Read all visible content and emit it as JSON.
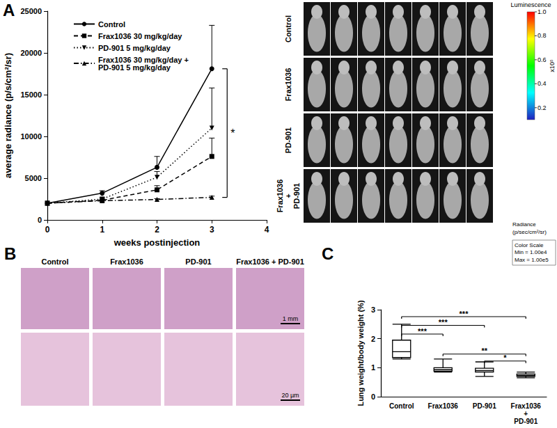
{
  "chart_data": [
    {
      "type": "line",
      "title": "A",
      "xlabel": "weeks postinjection",
      "ylabel": "average radiance (p/s/cm²/sr)",
      "x": [
        0,
        1,
        2,
        3
      ],
      "xlim": [
        0,
        4
      ],
      "xticks": [
        0,
        1,
        2,
        3,
        4
      ],
      "ylim": [
        0,
        25000
      ],
      "yticks": [
        0,
        5000,
        10000,
        15000,
        20000,
        25000
      ],
      "grid": false,
      "legend": "upper left",
      "series": [
        {
          "name": "Control",
          "color": "#000000",
          "marker": "circle",
          "line_style": "solid",
          "values": [
            2000,
            3200,
            6300,
            18100
          ],
          "errors": [
            0,
            300,
            1300,
            5200
          ]
        },
        {
          "name": "Frax1036 30 mg/kg/day",
          "color": "#000000",
          "marker": "square",
          "line_style": "dashed",
          "values": [
            2000,
            2350,
            3600,
            7600
          ],
          "errors": [
            0,
            150,
            500,
            2200
          ]
        },
        {
          "name": "PD-901 5 mg/kg/day",
          "color": "#000000",
          "marker": "triangle-down",
          "line_style": "dotted",
          "values": [
            2000,
            2500,
            5100,
            11000
          ],
          "errors": [
            0,
            200,
            700,
            4800
          ]
        },
        {
          "name": "Frax1036 30 mg/kg/day + PD-901 5 mg/kg/day",
          "color": "#000000",
          "marker": "triangle",
          "line_style": "dashdot",
          "values": [
            2000,
            2300,
            2450,
            2700
          ],
          "errors": [
            0,
            100,
            100,
            150
          ]
        }
      ],
      "annotations": [
        {
          "text": "*",
          "from": "Control",
          "to": "Frax1036 30 mg/kg/day + PD-901 5 mg/kg/day"
        }
      ]
    },
    {
      "type": "box",
      "title": "C",
      "ylabel": "Lung weight/body weight (%)",
      "categories": [
        "Control",
        "Frax1036",
        "PD-901",
        "Frax1036 + PD-901"
      ],
      "values": [
        [
          1.3,
          1.35,
          1.55,
          1.95,
          2.5
        ],
        [
          0.85,
          0.88,
          0.93,
          1.0,
          1.3
        ],
        [
          0.7,
          0.85,
          0.9,
          0.98,
          1.2
        ],
        [
          0.65,
          0.7,
          0.73,
          0.78,
          0.85
        ]
      ],
      "ylim": [
        0,
        3
      ],
      "yticks": [
        0,
        1,
        2,
        3
      ],
      "grid": false,
      "color": "#ffffff",
      "comparisons": [
        {
          "from": "Control",
          "to": "Frax1036 + PD-901",
          "label": "***"
        },
        {
          "from": "Control",
          "to": "PD-901",
          "label": "***"
        },
        {
          "from": "Control",
          "to": "Frax1036",
          "label": "***"
        },
        {
          "from": "Frax1036",
          "to": "Frax1036 + PD-901",
          "label": "**"
        },
        {
          "from": "PD-901",
          "to": "Frax1036 + PD-901",
          "label": "*"
        }
      ]
    }
  ],
  "imaging": {
    "rows": [
      "Control",
      "Frax1036",
      "PD-901",
      "Frax1036 + PD-901"
    ],
    "colorbar": {
      "title": "Luminescence",
      "range": [
        0.1,
        1
      ],
      "ticks": [
        {
          "value": 1,
          "label": "1.0"
        },
        0.8,
        0.6,
        0.4,
        0.2
      ],
      "multiplier": "x10⁵",
      "label": [
        "Radiance",
        "(p/sec/cm²/sr)"
      ],
      "scale_box": [
        "Color Scale",
        "Min = 1.00e4",
        "Max = 1.00e5"
      ]
    }
  },
  "histology": {
    "title": "B",
    "columns": [
      "Control",
      "Frax1036",
      "PD-901",
      "Frax1036 + PD-901"
    ],
    "scale_bars": [
      "1 mm",
      "20 µm"
    ]
  }
}
